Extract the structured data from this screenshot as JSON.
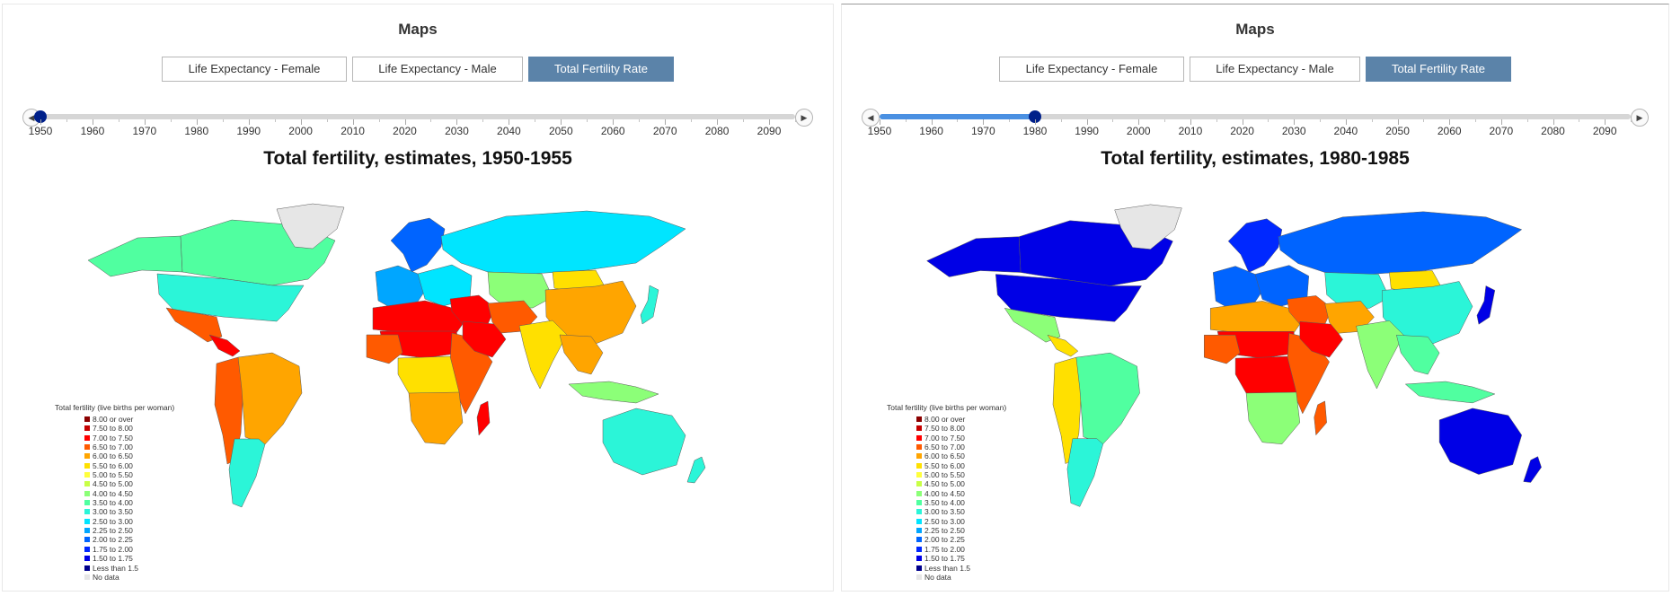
{
  "legend_bins": [
    {
      "label": "8.00 or over",
      "color": "#8b0000"
    },
    {
      "label": "7.50 to 8.00",
      "color": "#c50000"
    },
    {
      "label": "7.00 to 7.50",
      "color": "#ff0000"
    },
    {
      "label": "6.50 to 7.00",
      "color": "#ff5a00"
    },
    {
      "label": "6.00 to 6.50",
      "color": "#ffa500"
    },
    {
      "label": "5.50 to 6.00",
      "color": "#ffe000"
    },
    {
      "label": "5.00 to 5.50",
      "color": "#ffff3c"
    },
    {
      "label": "4.50 to 5.00",
      "color": "#c8ff46"
    },
    {
      "label": "4.00 to 4.50",
      "color": "#8cff78"
    },
    {
      "label": "3.50 to 4.00",
      "color": "#50ffa0"
    },
    {
      "label": "3.00 to 3.50",
      "color": "#2bf5d8"
    },
    {
      "label": "2.50 to 3.00",
      "color": "#00e5ff"
    },
    {
      "label": "2.25 to 2.50",
      "color": "#00a6ff"
    },
    {
      "label": "2.00 to 2.25",
      "color": "#0064ff"
    },
    {
      "label": "1.75 to 2.00",
      "color": "#0028ff"
    },
    {
      "label": "1.50 to 1.75",
      "color": "#0000e6"
    },
    {
      "label": "Less than 1.5",
      "color": "#00008c"
    },
    {
      "label": "No data",
      "color": "#e6e6e6"
    }
  ],
  "panels": [
    {
      "maps_title": "Maps",
      "tabs": [
        {
          "label": "Life Expectancy - Female",
          "active": false
        },
        {
          "label": "Life Expectancy - Male",
          "active": false
        },
        {
          "label": "Total Fertility Rate",
          "active": true
        }
      ],
      "slider": {
        "prev_icon": "◀",
        "next_icon": "▶",
        "min": 1950,
        "max": 2095,
        "value": 1950,
        "ticks": [
          "1950",
          "1960",
          "1970",
          "1980",
          "1990",
          "2000",
          "2010",
          "2020",
          "2030",
          "2040",
          "2050",
          "2060",
          "2070",
          "2080",
          "2090"
        ]
      },
      "chart_title": "Total fertility, estimates, 1950-1955",
      "legend_title": "Total fertility (live births per woman)",
      "regions": {
        "canada": "#50ffa0",
        "alaska": "#50ffa0",
        "usa": "#2bf5d8",
        "greenland": "#e6e6e6",
        "mexico": "#ff5a00",
        "central_am": "#ff0000",
        "brazil": "#ffa500",
        "andes": "#ff5a00",
        "argentina": "#2bf5d8",
        "scandinavia": "#0064ff",
        "w_europe": "#00a6ff",
        "e_europe": "#00e5ff",
        "russia": "#00e5ff",
        "central_asia": "#8cff78",
        "mongolia": "#ffe000",
        "china": "#ffa500",
        "n_africa": "#ff0000",
        "sahel": "#ff0000",
        "w_africa": "#ff5a00",
        "e_africa": "#ff5a00",
        "central_africa": "#ffe000",
        "s_africa": "#ffa500",
        "madagascar": "#ff0000",
        "middle_east": "#ff0000",
        "arabia": "#ff0000",
        "iran": "#ff5a00",
        "india": "#ffe000",
        "se_asia": "#ffa500",
        "indonesia": "#8cff78",
        "japan": "#2bf5d8",
        "australia": "#2bf5d8",
        "nz": "#2bf5d8"
      }
    },
    {
      "maps_title": "Maps",
      "tabs": [
        {
          "label": "Life Expectancy - Female",
          "active": false
        },
        {
          "label": "Life Expectancy - Male",
          "active": false
        },
        {
          "label": "Total Fertility Rate",
          "active": true
        }
      ],
      "slider": {
        "prev_icon": "◀",
        "next_icon": "▶",
        "min": 1950,
        "max": 2095,
        "value": 1980,
        "ticks": [
          "1950",
          "1960",
          "1970",
          "1980",
          "1990",
          "2000",
          "2010",
          "2020",
          "2030",
          "2040",
          "2050",
          "2060",
          "2070",
          "2080",
          "2090"
        ]
      },
      "chart_title": "Total fertility, estimates, 1980-1985",
      "legend_title": "Total fertility (live births per woman)",
      "regions": {
        "canada": "#0000e6",
        "alaska": "#0000e6",
        "usa": "#0000e6",
        "greenland": "#e6e6e6",
        "mexico": "#8cff78",
        "central_am": "#ffe000",
        "brazil": "#50ffa0",
        "andes": "#ffe000",
        "argentina": "#2bf5d8",
        "scandinavia": "#0028ff",
        "w_europe": "#0064ff",
        "e_europe": "#0064ff",
        "russia": "#0064ff",
        "central_asia": "#2bf5d8",
        "mongolia": "#ffe000",
        "china": "#2bf5d8",
        "n_africa": "#ffa500",
        "sahel": "#ff0000",
        "w_africa": "#ff5a00",
        "e_africa": "#ff5a00",
        "central_africa": "#ff0000",
        "s_africa": "#8cff78",
        "madagascar": "#ff5a00",
        "middle_east": "#ff5a00",
        "arabia": "#ff0000",
        "iran": "#ffa500",
        "india": "#8cff78",
        "se_asia": "#50ffa0",
        "indonesia": "#50ffa0",
        "japan": "#0000e6",
        "australia": "#0000e6",
        "nz": "#0000e6"
      }
    }
  ]
}
